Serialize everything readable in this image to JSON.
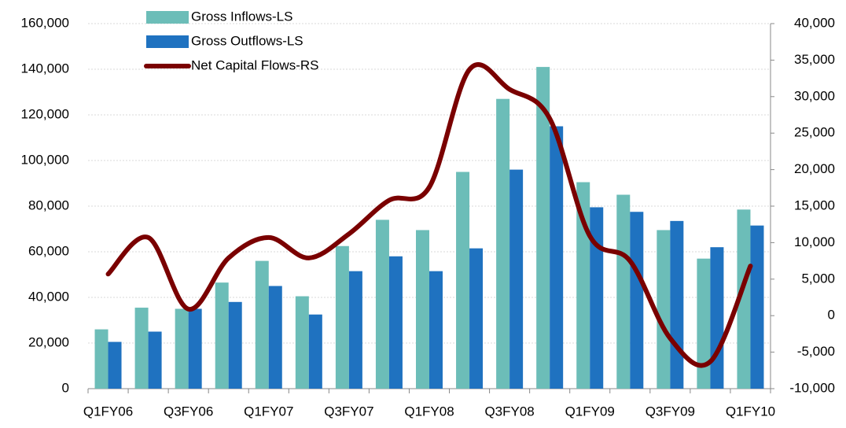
{
  "chart_data": {
    "type": "bar-line",
    "categories": [
      "Q1FY06",
      null,
      "Q3FY06",
      null,
      "Q1FY07",
      null,
      "Q3FY07",
      null,
      "Q1FY08",
      null,
      "Q3FY08",
      null,
      "Q1FY09",
      null,
      "Q3FY09",
      null,
      "Q1FY10"
    ],
    "series": [
      {
        "name": "Gross Inflows-LS",
        "color": "#6cbdb8",
        "type": "bar",
        "values": [
          26000,
          35500,
          35000,
          46500,
          56000,
          40500,
          62500,
          74000,
          69500,
          95000,
          127000,
          141000,
          90500,
          85000,
          69500,
          57000,
          78500
        ]
      },
      {
        "name": "Gross Outflows-LS",
        "color": "#1f72c0",
        "type": "bar",
        "values": [
          20500,
          25000,
          35000,
          38000,
          45000,
          32500,
          51500,
          58000,
          51500,
          61500,
          96000,
          115000,
          79500,
          77500,
          73500,
          62000,
          71500
        ]
      },
      {
        "name": "Net Capital Flows-RS",
        "color": "#7a0000",
        "type": "line",
        "axis": "y2",
        "values": [
          5700,
          10700,
          900,
          7900,
          10700,
          7900,
          11200,
          15800,
          17600,
          33700,
          31000,
          27000,
          10900,
          7500,
          -3100,
          -6300,
          6800
        ]
      }
    ],
    "ylim": [
      0,
      160000
    ],
    "yticks": [
      0,
      {
        "value": 20000,
        "label": "20,000"
      },
      {
        "value": 40000,
        "label": "40,000"
      },
      {
        "value": 60000,
        "label": "60,000"
      },
      {
        "value": 80000,
        "label": "80,000"
      },
      {
        "value": 100000,
        "label": "100,000"
      },
      {
        "value": 120000,
        "label": "120,000"
      },
      {
        "value": 140000,
        "label": "140,000"
      },
      {
        "value": 160000,
        "label": "160,000"
      }
    ],
    "y2lim": [
      -10000,
      40000
    ],
    "y2ticks": [
      {
        "value": -10000,
        "label": "-10,000"
      },
      {
        "value": -5000,
        "label": "-5,000"
      },
      0,
      {
        "value": 5000,
        "label": "5,000"
      },
      {
        "value": 10000,
        "label": "10,000"
      },
      {
        "value": 15000,
        "label": "15,000"
      },
      {
        "value": 20000,
        "label": "20,000"
      },
      {
        "value": 25000,
        "label": "25,000"
      },
      {
        "value": 30000,
        "label": "30,000"
      },
      {
        "value": 35000,
        "label": "35,000"
      },
      {
        "value": 40000,
        "label": "40,000"
      }
    ],
    "grid": true
  }
}
